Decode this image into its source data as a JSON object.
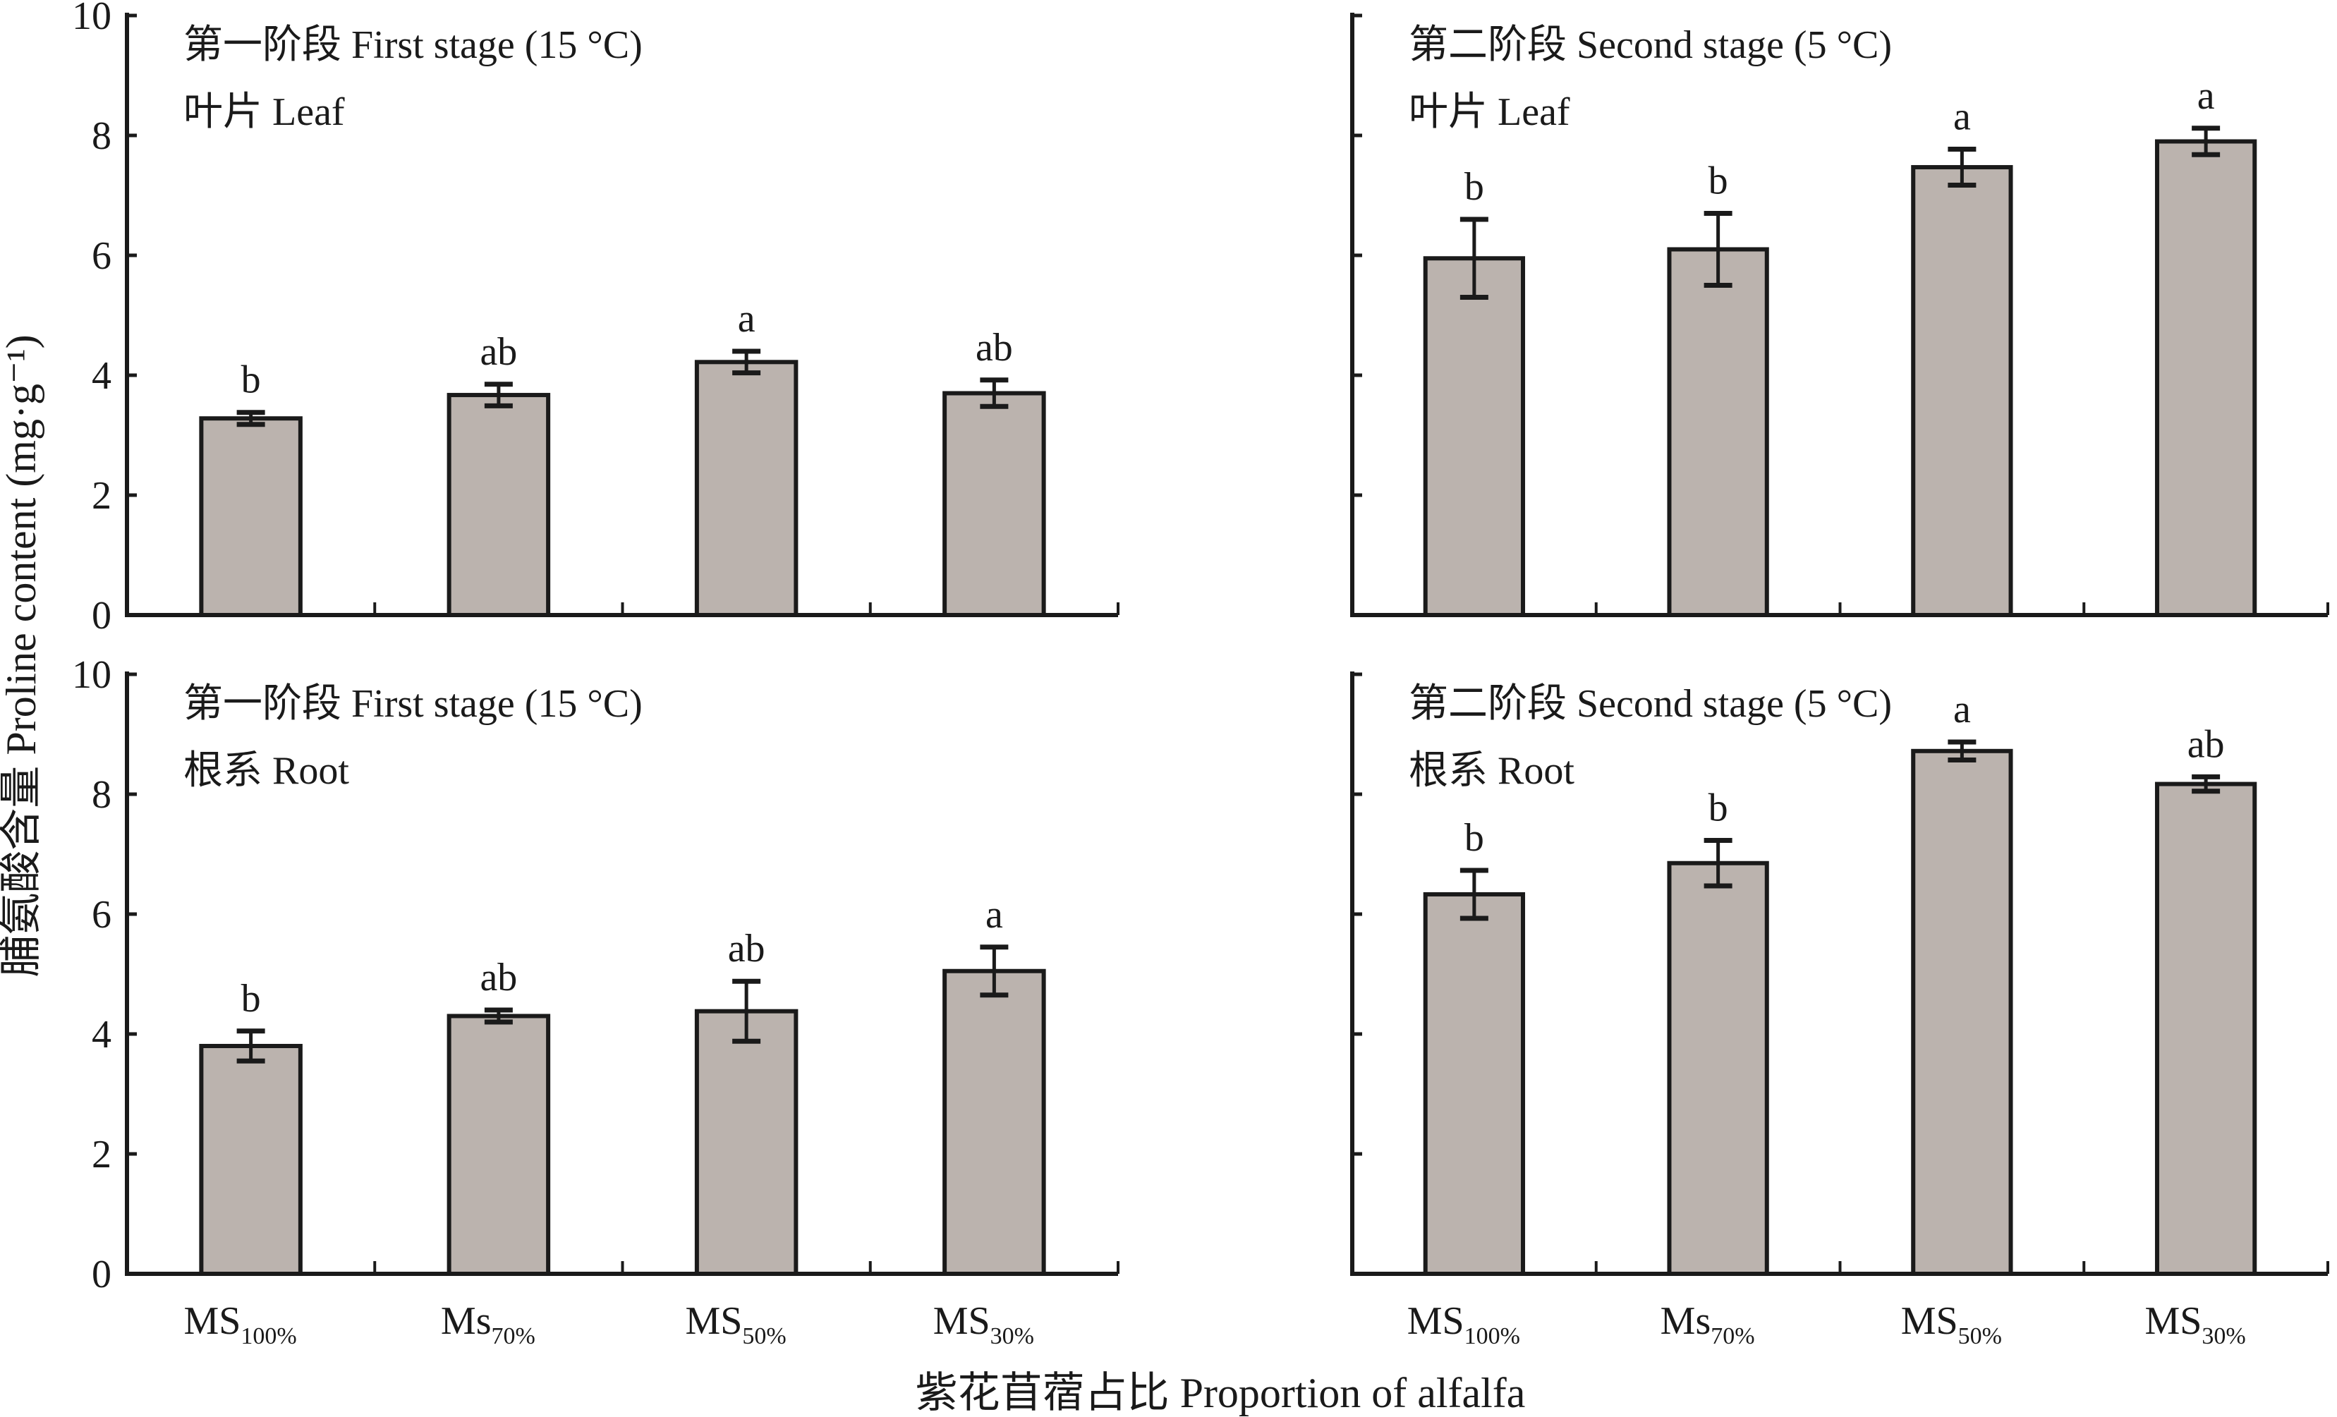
{
  "chart_data": {
    "type": "bar",
    "ylabel": "脯氨酸含量 Proline content (mg·g⁻¹)",
    "xlabel": "紫花苜蓿占比 Proportion of alfalfa",
    "categories": [
      {
        "main": "MS",
        "sub": "100%"
      },
      {
        "main": "Ms",
        "sub": "70%"
      },
      {
        "main": "MS",
        "sub": "50%"
      },
      {
        "main": "MS",
        "sub": "30%"
      }
    ],
    "ylim": [
      0,
      10
    ],
    "yticks": [
      "0",
      "2",
      "4",
      "6",
      "8",
      "10"
    ],
    "bar_color": "#bbb3ae",
    "panels": [
      {
        "title_line1": "第一阶段 First stage (15 °C)",
        "title_line2": "叶片 Leaf",
        "values": [
          3.28,
          3.67,
          4.22,
          3.7
        ],
        "errors": [
          0.1,
          0.18,
          0.18,
          0.22
        ],
        "letters": [
          "b",
          "ab",
          "a",
          "ab"
        ]
      },
      {
        "title_line1": "第二阶段 Second stage (5 °C)",
        "title_line2": "叶片 Leaf",
        "values": [
          5.95,
          6.1,
          7.47,
          7.9
        ],
        "errors": [
          0.65,
          0.6,
          0.3,
          0.22
        ],
        "letters": [
          "b",
          "b",
          "a",
          "a"
        ]
      },
      {
        "title_line1": "第一阶段 First stage (15 °C)",
        "title_line2": "根系 Root",
        "values": [
          3.8,
          4.3,
          4.38,
          5.05
        ],
        "errors": [
          0.25,
          0.1,
          0.5,
          0.4
        ],
        "letters": [
          "b",
          "ab",
          "ab",
          "a"
        ]
      },
      {
        "title_line1": "第二阶段 Second stage (5 °C)",
        "title_line2": "根系 Root",
        "values": [
          6.33,
          6.85,
          8.72,
          8.17
        ],
        "errors": [
          0.4,
          0.38,
          0.15,
          0.12
        ],
        "letters": [
          "b",
          "b",
          "a",
          "ab"
        ]
      }
    ]
  }
}
